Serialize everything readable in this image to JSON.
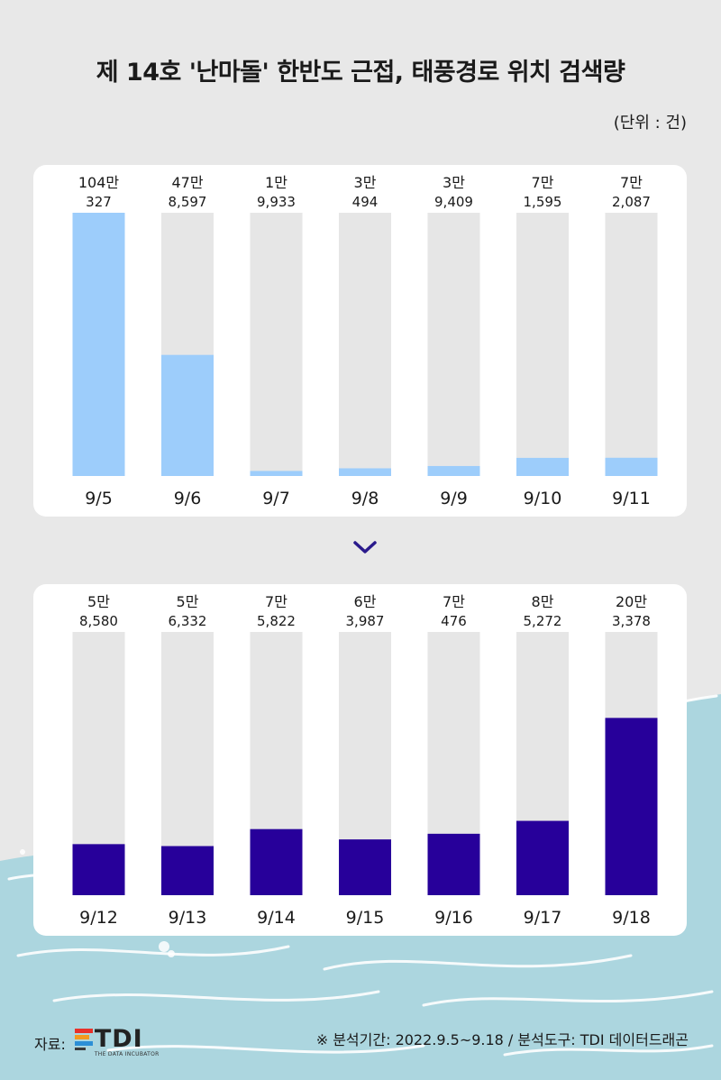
{
  "header": {
    "title": "제 14호 '난마돌' 한반도 근접, 태풍경로 위치 검색량",
    "unit": "(단위 : 건)"
  },
  "footer": {
    "source_label": "자료:",
    "logo_text": "TDI",
    "logo_subtext": "THE DATA INCUBATOR",
    "note": "※ 분석기간: 2022.9.5~9.18 / 분석도구: TDI 데이터드래곤"
  },
  "colors": {
    "background": "#e8e8e8",
    "track": "#e6e6e6",
    "bar_light": "#9dcdfb",
    "bar_dark": "#27009a",
    "sea": "#acd6df",
    "chevron": "#2a1a8c"
  },
  "chart_data": [
    {
      "type": "bar",
      "categories": [
        "9/5",
        "9/6",
        "9/7",
        "9/8",
        "9/9",
        "9/10",
        "9/11"
      ],
      "value_labels_top": [
        "104만",
        "47만",
        "1만",
        "3만",
        "3만",
        "7만",
        "7만"
      ],
      "value_labels_bottom": [
        "327",
        "8,597",
        "9,933",
        "494",
        "9,409",
        "1,595",
        "2,087"
      ],
      "values": [
        1040327,
        478597,
        19933,
        30494,
        39409,
        71595,
        72087
      ],
      "ylim": [
        0,
        1040327
      ],
      "color": "#9dcdfb"
    },
    {
      "type": "bar",
      "categories": [
        "9/12",
        "9/13",
        "9/14",
        "9/15",
        "9/16",
        "9/17",
        "9/18"
      ],
      "value_labels_top": [
        "5만",
        "5만",
        "7만",
        "6만",
        "7만",
        "8만",
        "20만"
      ],
      "value_labels_bottom": [
        "8,580",
        "6,332",
        "5,822",
        "3,987",
        "476",
        "5,272",
        "3,378"
      ],
      "values": [
        58580,
        56332,
        75822,
        63987,
        70476,
        85272,
        203378
      ],
      "ylim": [
        0,
        302000
      ],
      "color": "#27009a"
    }
  ]
}
